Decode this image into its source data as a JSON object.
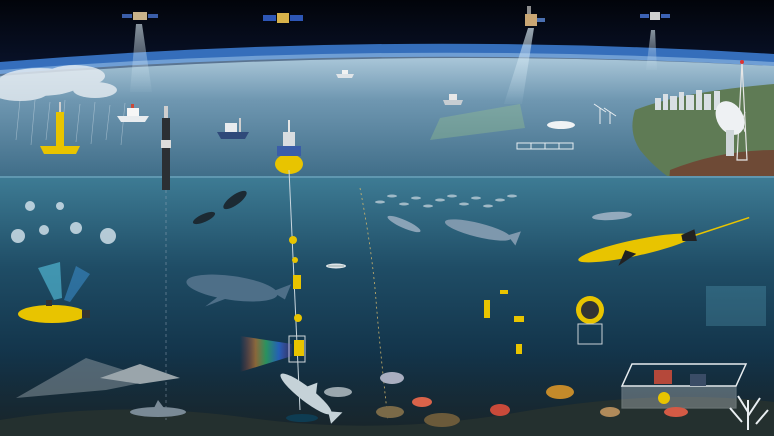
{
  "scene": {
    "palette": {
      "space": "#03060c",
      "atmosphere": "#3d7fd6",
      "sea_surface": "#4f7f9c",
      "sea_surface_far": "#8fb2c8",
      "shallow_water": "#2f6f86",
      "deep_water": "#0b2434",
      "seafloor": "#1d2a2f",
      "land": "#5f7b55",
      "accent_yellow": "#e8c400",
      "satellite_beam": "#cfe6f2"
    },
    "icons": [
      "satellite-icon",
      "ship-icon",
      "buoy-icon",
      "glider-icon",
      "auv-icon",
      "whale-icon",
      "dolphin-icon",
      "fish-icon",
      "shark-icon",
      "manta-ray-icon",
      "jellyfish-icon",
      "radar-dish-icon",
      "radio-tower-icon",
      "seafloor-node-icon",
      "coral-icon"
    ]
  }
}
